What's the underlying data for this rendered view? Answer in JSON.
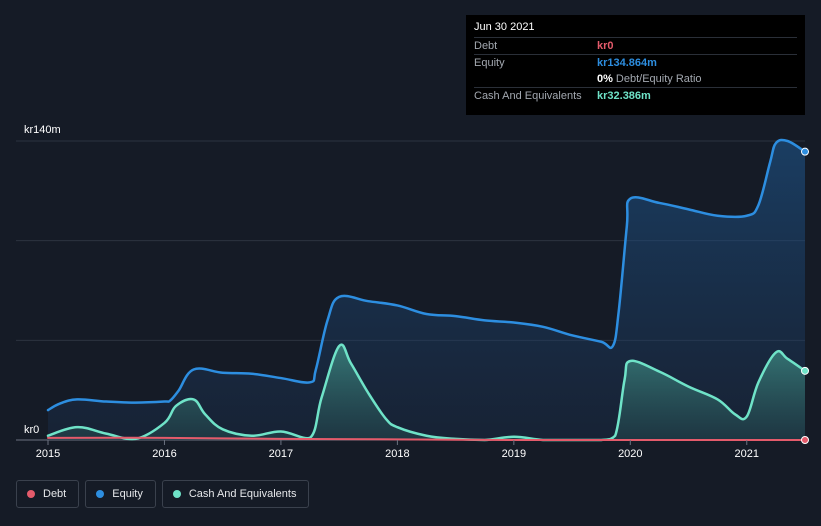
{
  "chart_data": {
    "type": "area",
    "y_axis": {
      "top_label": "kr140m",
      "bottom_label": "kr0",
      "ylim": [
        0,
        140
      ]
    },
    "x_ticks": [
      "2015",
      "2016",
      "2017",
      "2018",
      "2019",
      "2020",
      "2021"
    ],
    "x_tick_values": [
      2015,
      2016,
      2017,
      2018,
      2019,
      2020,
      2021
    ],
    "xlim": [
      2015,
      2021.5
    ],
    "series": [
      {
        "name": "Equity",
        "color": "#2d8ee0",
        "x": [
          2015,
          2015.1,
          2015.25,
          2015.5,
          2015.75,
          2016,
          2016.05,
          2016.12,
          2016.25,
          2016.5,
          2016.75,
          2017,
          2017.25,
          2017.3,
          2017.4,
          2017.5,
          2017.75,
          2018,
          2018.25,
          2018.5,
          2018.75,
          2019,
          2019.25,
          2019.5,
          2019.75,
          2019.85,
          2019.9,
          2019.97,
          2020,
          2020.25,
          2020.5,
          2020.75,
          2021,
          2021.1,
          2021.2,
          2021.25,
          2021.35,
          2021.5
        ],
        "values": [
          14,
          17,
          19,
          18,
          17.5,
          18,
          18.5,
          23,
          33,
          31.5,
          31,
          29,
          27,
          33,
          56,
          67,
          65,
          63,
          59,
          58,
          56,
          55,
          53,
          49,
          46,
          44,
          60,
          100,
          113,
          111,
          108,
          105,
          105,
          110,
          130,
          139,
          140,
          135
        ]
      },
      {
        "name": "Cash And Equivalents",
        "color": "#6fe3c8",
        "x": [
          2015,
          2015.25,
          2015.5,
          2015.75,
          2016,
          2016.1,
          2016.25,
          2016.35,
          2016.5,
          2016.75,
          2017,
          2017.25,
          2017.35,
          2017.5,
          2017.6,
          2017.75,
          2017.9,
          2018,
          2018.25,
          2018.5,
          2018.75,
          2019,
          2019.25,
          2019.5,
          2019.75,
          2019.87,
          2019.95,
          2020,
          2020.25,
          2020.5,
          2020.75,
          2020.9,
          2021,
          2021.1,
          2021.25,
          2021.35,
          2021.5
        ],
        "values": [
          2,
          6,
          3,
          0.5,
          8,
          16,
          19,
          12,
          5,
          2,
          4,
          1,
          20,
          44,
          36,
          22,
          10,
          6,
          2,
          0.5,
          0,
          1.5,
          0,
          0,
          0,
          2,
          28,
          37,
          32,
          25,
          19,
          12,
          11,
          27,
          41,
          38,
          32.386
        ]
      },
      {
        "name": "Debt",
        "color": "#e45b6b",
        "x": [
          2015,
          2016,
          2017,
          2018,
          2019,
          2020,
          2021,
          2021.5
        ],
        "values": [
          1,
          1,
          0.5,
          0.3,
          0,
          0,
          0,
          0
        ]
      }
    ],
    "legend": [
      "Debt",
      "Equity",
      "Cash And Equivalents"
    ],
    "grid": true
  },
  "tooltip": {
    "date": "Jun 30 2021",
    "debt_label": "Debt",
    "debt_value": "kr0",
    "equity_label": "Equity",
    "equity_value": "kr134.864m",
    "ratio_value": "0%",
    "ratio_text": "Debt/Equity Ratio",
    "cash_label": "Cash And Equivalents",
    "cash_value": "kr32.386m"
  },
  "legend": {
    "debt": "Debt",
    "equity": "Equity",
    "cash": "Cash And Equivalents",
    "debt_color": "#e45b6b",
    "equity_color": "#2d8ee0",
    "cash_color": "#6fe3c8"
  }
}
